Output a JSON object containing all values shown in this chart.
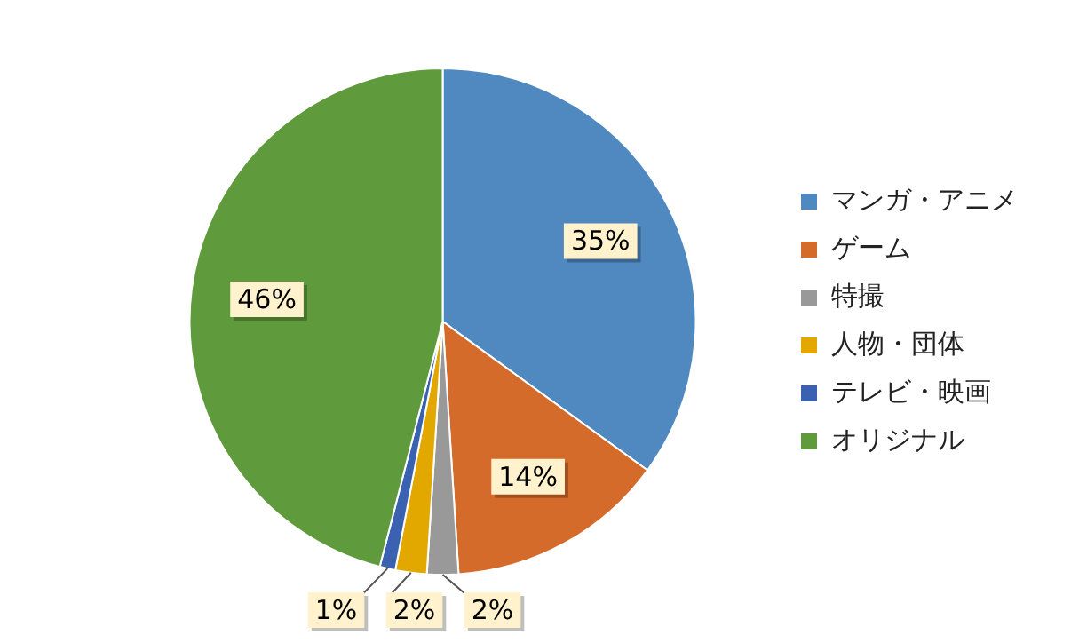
{
  "chart_data": {
    "type": "pie",
    "categories": [
      "マンガ・アニメ",
      "ゲーム",
      "特撮",
      "人物・団体",
      "テレビ・映画",
      "オリジナル"
    ],
    "values": [
      35,
      14,
      2,
      2,
      1,
      46
    ],
    "colors": [
      "#4f89c0",
      "#d46b2a",
      "#999999",
      "#e3a800",
      "#3a62b0",
      "#5f9a3c"
    ],
    "value_labels": [
      "35%",
      "14%",
      "2%",
      "2%",
      "1%",
      "46%"
    ],
    "legend": "right"
  }
}
